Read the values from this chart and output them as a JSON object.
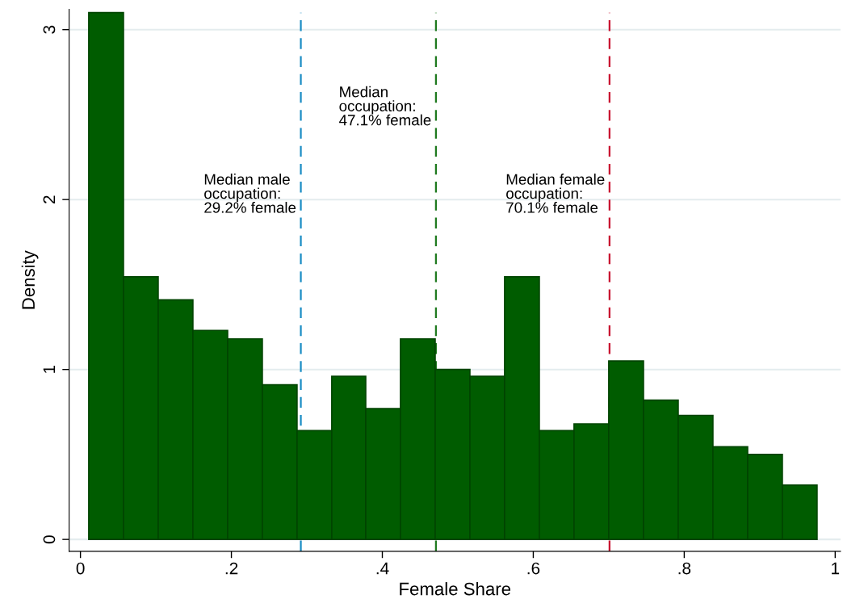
{
  "chart_data": {
    "type": "histogram",
    "xlabel": "Female Share",
    "ylabel": "Density",
    "bins": [
      0.011,
      0.057,
      0.103,
      0.149,
      0.195,
      0.241,
      0.287,
      0.333,
      0.378,
      0.424,
      0.47,
      0.516,
      0.562,
      0.608,
      0.654,
      0.7,
      0.746,
      0.792,
      0.838,
      0.884,
      0.93,
      0.976
    ],
    "values": [
      3.1,
      1.545,
      1.41,
      1.23,
      1.18,
      0.91,
      0.64,
      0.96,
      0.77,
      1.18,
      1.0,
      0.96,
      1.545,
      0.64,
      0.68,
      1.05,
      0.82,
      0.73,
      0.545,
      0.5,
      0.32
    ],
    "color": "#005c00",
    "xlim": [
      -0.015,
      1.007
    ],
    "ylim": [
      -0.07,
      3.12
    ],
    "xticks": [
      0,
      {
        "value": 0.2,
        "label": ".2"
      },
      {
        "value": 0.4,
        "label": ".4"
      },
      {
        "value": 0.6,
        "label": ".6"
      },
      {
        "value": 0.8,
        "label": ".8"
      },
      1
    ],
    "yticks": [
      0,
      1,
      2,
      3
    ],
    "grid": "y",
    "ref_lines": [
      {
        "axis": "x",
        "value": 0.292,
        "label": "Median male\noccupation:\n29.2% female",
        "color": "#1a8cc4",
        "line_style": "dashed"
      },
      {
        "axis": "x",
        "value": 0.471,
        "label": "Median\noccupation:\n47.1% female",
        "color": "#1f7a1f",
        "line_style": "dashed"
      },
      {
        "axis": "x",
        "value": 0.701,
        "label": "Median female\noccupation:\n70.1% female",
        "color": "#c8102e",
        "line_style": "dashed"
      }
    ]
  }
}
